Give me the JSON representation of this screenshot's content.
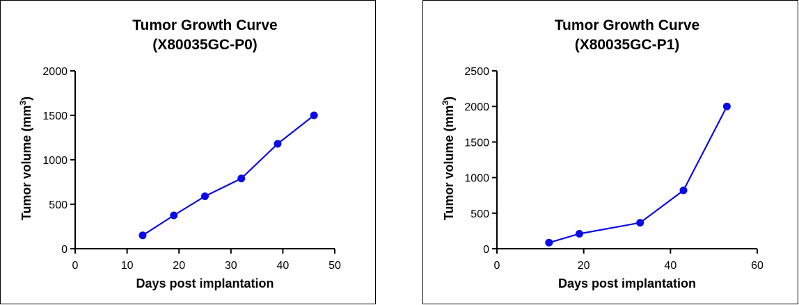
{
  "chart_data": [
    {
      "type": "line",
      "title": [
        "Tumor Growth Curve",
        "(X80035GC-P0)"
      ],
      "xlabel": "Days post implantation",
      "ylabel": "Tumor volume (mm",
      "ylabel_sup": "3",
      "ylabel_suffix": ")",
      "xlim": [
        0,
        50
      ],
      "ylim": [
        0,
        2000
      ],
      "xticks": [
        0,
        10,
        20,
        30,
        40,
        50
      ],
      "yticks": [
        0,
        500,
        1000,
        1500,
        2000
      ],
      "grid": false,
      "color": "#0a0ae6",
      "series": [
        {
          "x": [
            13,
            19,
            25,
            32,
            39,
            46
          ],
          "y": [
            150,
            375,
            590,
            790,
            1180,
            1500
          ]
        }
      ]
    },
    {
      "type": "line",
      "title": [
        "Tumor Growth Curve",
        "(X80035GC-P1)"
      ],
      "xlabel": "Days post implantation",
      "ylabel": "Tumor volume (mm",
      "ylabel_sup": "3",
      "ylabel_suffix": ")",
      "xlim": [
        0,
        60
      ],
      "ylim": [
        0,
        2500
      ],
      "xticks": [
        0,
        20,
        40,
        60
      ],
      "yticks": [
        0,
        500,
        1000,
        1500,
        2000,
        2500
      ],
      "grid": false,
      "color": "#0a0ae6",
      "series": [
        {
          "x": [
            12,
            19,
            33,
            43,
            53
          ],
          "y": [
            85,
            210,
            365,
            820,
            2000
          ]
        }
      ]
    }
  ]
}
